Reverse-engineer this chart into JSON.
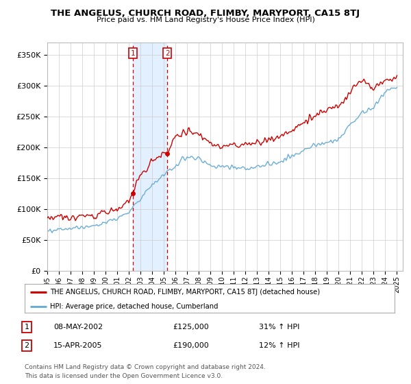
{
  "title": "THE ANGELUS, CHURCH ROAD, FLIMBY, MARYPORT, CA15 8TJ",
  "subtitle": "Price paid vs. HM Land Registry's House Price Index (HPI)",
  "legend_line1": "THE ANGELUS, CHURCH ROAD, FLIMBY, MARYPORT, CA15 8TJ (detached house)",
  "legend_line2": "HPI: Average price, detached house, Cumberland",
  "transaction1_date": "08-MAY-2002",
  "transaction1_price": "£125,000",
  "transaction1_hpi": "31% ↑ HPI",
  "transaction2_date": "15-APR-2005",
  "transaction2_price": "£190,000",
  "transaction2_hpi": "12% ↑ HPI",
  "footer": "Contains HM Land Registry data © Crown copyright and database right 2024.\nThis data is licensed under the Open Government Licence v3.0.",
  "hpi_color": "#6baed6",
  "price_color": "#cc0000",
  "shade_color": "#ddeeff",
  "ylim": [
    0,
    370000
  ],
  "yticks": [
    0,
    50000,
    100000,
    150000,
    200000,
    250000,
    300000,
    350000
  ],
  "background_color": "#ffffff",
  "grid_color": "#cccccc",
  "t1_year": 2002.36,
  "t2_year": 2005.29,
  "t1_price": 125000,
  "t2_price": 190000
}
